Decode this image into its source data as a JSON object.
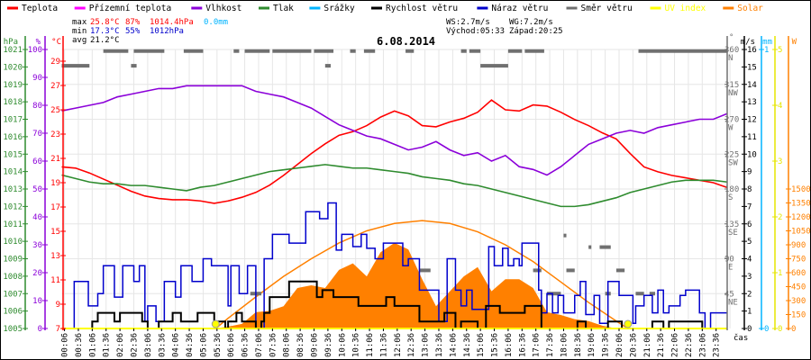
{
  "legend": [
    {
      "label": "Teplota",
      "color": "#ff0000"
    },
    {
      "label": "Přízemní teplota",
      "color": "#ff00ff"
    },
    {
      "label": "Vlhkost",
      "color": "#8b00d9"
    },
    {
      "label": "Tlak",
      "color": "#2e8b2e"
    },
    {
      "label": "Srážky",
      "color": "#00b4ff"
    },
    {
      "label": "Rychlost větru",
      "color": "#000000"
    },
    {
      "label": "Náraz větru",
      "color": "#0000cc"
    },
    {
      "label": "Směr větru",
      "color": "#707070"
    },
    {
      "label": "UV index",
      "color": "#ffff00"
    },
    {
      "label": "Solar",
      "color": "#ff8000"
    }
  ],
  "stats": {
    "max_label": "max",
    "max_temp": "25.8°C",
    "max_hum": "87%",
    "max_press": "1014.4hPa",
    "rain": "0.0mm",
    "min_label": "min",
    "min_temp": "17.3°C",
    "min_hum": "55%",
    "min_press": "1012hPa",
    "avg_label": "avg",
    "avg_temp": "21.2°C",
    "ws": "WS:2.7m/s",
    "wg": "WG:7.2m/s",
    "sunrise": "Východ:05:33",
    "sunset": "Západ:20:25"
  },
  "colors": {
    "max": "#ff0000",
    "min": "#0000cc",
    "rain": "#00b4ff",
    "grid": "#e6e6e6"
  },
  "chart_data": {
    "type": "line",
    "title": "6.08.2014",
    "xlabel": "čas",
    "x_range_hours": [
      0,
      24
    ],
    "x_ticks": [
      "00:06",
      "00:36",
      "01:06",
      "01:36",
      "02:06",
      "02:36",
      "03:06",
      "03:36",
      "04:06",
      "04:36",
      "05:06",
      "05:36",
      "06:06",
      "06:36",
      "07:06",
      "07:36",
      "08:06",
      "08:36",
      "09:06",
      "09:36",
      "10:06",
      "10:36",
      "11:06",
      "11:36",
      "12:06",
      "12:36",
      "13:06",
      "13:36",
      "14:06",
      "14:36",
      "15:06",
      "15:36",
      "16:06",
      "16:36",
      "17:06",
      "17:36",
      "18:06",
      "18:36",
      "19:06",
      "19:36",
      "20:06",
      "20:36",
      "21:06",
      "21:36",
      "22:06",
      "22:36",
      "23:06",
      "23:36"
    ],
    "axes": {
      "pressure": {
        "label": "hPa",
        "range": [
          1005,
          1021
        ],
        "ticks": [
          1005,
          1006,
          1007,
          1008,
          1009,
          1010,
          1011,
          1012,
          1013,
          1014,
          1015,
          1016,
          1017,
          1018,
          1019,
          1020,
          1021
        ]
      },
      "humidity": {
        "label": "%",
        "range": [
          0,
          100
        ],
        "ticks": [
          0,
          10,
          20,
          30,
          40,
          50,
          60,
          70,
          80,
          90,
          100
        ]
      },
      "temperature": {
        "label": "°C",
        "range": [
          7,
          29
        ],
        "ticks": [
          7,
          9,
          11,
          13,
          15,
          17,
          19,
          21,
          23,
          25,
          27,
          29
        ]
      },
      "direction": {
        "label": "°",
        "range": [
          0,
          360
        ],
        "ticks": [
          {
            "v": 45,
            "l": "NE"
          },
          {
            "v": 90,
            "l": "E"
          },
          {
            "v": 135,
            "l": "SE"
          },
          {
            "v": 180,
            "l": "S"
          },
          {
            "v": 225,
            "l": "SW"
          },
          {
            "v": 270,
            "l": "W"
          },
          {
            "v": 315,
            "l": "NW"
          },
          {
            "v": 360,
            "l": "N"
          }
        ]
      },
      "wind": {
        "label": "m/s",
        "range": [
          0,
          16
        ],
        "ticks": [
          0,
          1,
          2,
          3,
          4,
          5,
          6,
          7,
          8,
          9,
          10,
          11,
          12,
          13,
          14,
          15,
          16
        ]
      },
      "rain": {
        "label": "mm",
        "range": [
          0,
          1
        ],
        "ticks": [
          0,
          1
        ]
      },
      "uv": {
        "label": "",
        "range": [
          0,
          5
        ],
        "ticks": [
          0,
          1,
          2,
          3,
          4,
          5
        ]
      },
      "solar": {
        "label": "W",
        "range": [
          0,
          3000
        ],
        "ticks": [
          0,
          150,
          300,
          450,
          600,
          750,
          900,
          1050,
          1200,
          1350,
          1500
        ]
      }
    },
    "series_step_hours": 0.5,
    "series": [
      {
        "name": "Teplota",
        "axis": "temperature",
        "values": [
          20.3,
          20.2,
          19.8,
          19.3,
          18.8,
          18.3,
          17.9,
          17.7,
          17.6,
          17.6,
          17.5,
          17.3,
          17.5,
          17.8,
          18.2,
          18.8,
          19.6,
          20.5,
          21.4,
          22.2,
          22.9,
          23.2,
          23.7,
          24.4,
          24.9,
          24.5,
          23.7,
          23.6,
          24.0,
          24.3,
          24.8,
          25.8,
          25.0,
          24.9,
          25.4,
          25.3,
          24.8,
          24.2,
          23.7,
          23.1,
          22.6,
          21.4,
          20.3,
          19.9,
          19.6,
          19.4,
          19.2,
          19.0,
          18.6
        ]
      },
      {
        "name": "Vlhkost",
        "axis": "humidity",
        "values": [
          78,
          79,
          80,
          81,
          83,
          84,
          85,
          86,
          86,
          87,
          87,
          87,
          87,
          87,
          85,
          84,
          83,
          81,
          79,
          76,
          73,
          71,
          69,
          68,
          66,
          64,
          65,
          67,
          64,
          62,
          63,
          60,
          62,
          58,
          57,
          55,
          58,
          62,
          66,
          68,
          70,
          71,
          70,
          72,
          73,
          74,
          75,
          75,
          77
        ]
      },
      {
        "name": "Tlak",
        "axis": "pressure",
        "values": [
          1013.8,
          1013.6,
          1013.4,
          1013.3,
          1013.3,
          1013.2,
          1013.2,
          1013.1,
          1013.0,
          1012.9,
          1013.1,
          1013.2,
          1013.4,
          1013.6,
          1013.8,
          1014.0,
          1014.1,
          1014.2,
          1014.3,
          1014.4,
          1014.3,
          1014.2,
          1014.2,
          1014.1,
          1014.0,
          1013.9,
          1013.7,
          1013.6,
          1013.5,
          1013.3,
          1013.2,
          1013.0,
          1012.8,
          1012.6,
          1012.4,
          1012.2,
          1012.0,
          1012.0,
          1012.1,
          1012.3,
          1012.5,
          1012.8,
          1013.0,
          1013.2,
          1013.4,
          1013.5,
          1013.5,
          1013.5,
          1013.4
        ]
      }
    ],
    "wind_speed": {
      "name": "Rychlost větru",
      "axis": "wind",
      "points": [
        [
          0,
          0
        ],
        [
          1.1,
          0.4
        ],
        [
          1.3,
          0.9
        ],
        [
          1.9,
          0.4
        ],
        [
          2.1,
          0.9
        ],
        [
          2.9,
          0.4
        ],
        [
          3.1,
          0
        ],
        [
          3.5,
          0.4
        ],
        [
          4.0,
          0.9
        ],
        [
          4.3,
          0.4
        ],
        [
          4.9,
          0.9
        ],
        [
          5.5,
          0.4
        ],
        [
          5.9,
          0
        ],
        [
          6.0,
          0.4
        ],
        [
          6.3,
          0.9
        ],
        [
          6.5,
          0.4
        ],
        [
          7.0,
          0
        ],
        [
          7.2,
          0.4
        ],
        [
          7.3,
          0.9
        ],
        [
          7.5,
          1.8
        ],
        [
          8.2,
          2.7
        ],
        [
          9.2,
          1.8
        ],
        [
          9.4,
          2.2
        ],
        [
          9.8,
          1.8
        ],
        [
          10.7,
          1.3
        ],
        [
          11.7,
          1.8
        ],
        [
          12.0,
          1.3
        ],
        [
          12.9,
          0.4
        ],
        [
          13.8,
          0.9
        ],
        [
          14.2,
          0
        ],
        [
          14.4,
          0.4
        ],
        [
          15.0,
          0
        ],
        [
          15.3,
          1.3
        ],
        [
          15.8,
          0.9
        ],
        [
          16.7,
          1.3
        ],
        [
          17.3,
          0
        ],
        [
          18.6,
          0.4
        ],
        [
          18.9,
          0
        ],
        [
          19.7,
          0.4
        ],
        [
          20.2,
          0
        ],
        [
          21.3,
          0.4
        ],
        [
          21.7,
          0
        ],
        [
          21.9,
          0.4
        ],
        [
          23.1,
          0
        ],
        [
          24,
          0
        ]
      ]
    },
    "wind_gust": {
      "name": "Náraz větru",
      "axis": "wind",
      "points": [
        [
          0,
          0
        ],
        [
          0.45,
          2.7
        ],
        [
          0.96,
          1.3
        ],
        [
          1.3,
          2.0
        ],
        [
          1.5,
          3.6
        ],
        [
          1.9,
          1.8
        ],
        [
          2.2,
          3.6
        ],
        [
          2.6,
          2.7
        ],
        [
          2.8,
          3.6
        ],
        [
          3.0,
          0.4
        ],
        [
          3.1,
          1.3
        ],
        [
          3.4,
          0.4
        ],
        [
          3.7,
          2.7
        ],
        [
          4.1,
          1.8
        ],
        [
          4.3,
          3.6
        ],
        [
          4.7,
          2.7
        ],
        [
          5.1,
          4.0
        ],
        [
          5.4,
          3.6
        ],
        [
          6.0,
          1.3
        ],
        [
          6.1,
          3.6
        ],
        [
          6.4,
          2.0
        ],
        [
          6.7,
          3.6
        ],
        [
          7.0,
          0
        ],
        [
          7.3,
          4.0
        ],
        [
          7.6,
          5.4
        ],
        [
          8.2,
          4.9
        ],
        [
          8.8,
          6.7
        ],
        [
          9.3,
          6.3
        ],
        [
          9.6,
          7.2
        ],
        [
          9.9,
          4.5
        ],
        [
          10.1,
          5.4
        ],
        [
          10.5,
          4.7
        ],
        [
          10.8,
          5.4
        ],
        [
          11.0,
          4.6
        ],
        [
          11.3,
          4.0
        ],
        [
          11.6,
          4.9
        ],
        [
          12.3,
          3.6
        ],
        [
          12.5,
          4.0
        ],
        [
          12.9,
          2.2
        ],
        [
          13.6,
          0.4
        ],
        [
          13.9,
          4.0
        ],
        [
          14.2,
          2.2
        ],
        [
          14.4,
          1.3
        ],
        [
          14.6,
          2.2
        ],
        [
          14.8,
          1.1
        ],
        [
          15.4,
          4.7
        ],
        [
          15.6,
          3.6
        ],
        [
          15.9,
          4.6
        ],
        [
          16.1,
          3.6
        ],
        [
          16.3,
          4.0
        ],
        [
          16.5,
          3.6
        ],
        [
          16.6,
          4.9
        ],
        [
          17.2,
          2.2
        ],
        [
          17.3,
          0.9
        ],
        [
          17.5,
          2.0
        ],
        [
          17.7,
          0.9
        ],
        [
          17.9,
          1.9
        ],
        [
          18.1,
          0.9
        ],
        [
          18.5,
          1.9
        ],
        [
          18.7,
          2.7
        ],
        [
          18.9,
          0.8
        ],
        [
          19.2,
          1.9
        ],
        [
          19.4,
          0.3
        ],
        [
          19.7,
          2.7
        ],
        [
          20.1,
          1.9
        ],
        [
          20.6,
          0.3
        ],
        [
          20.7,
          1.3
        ],
        [
          21.0,
          1.9
        ],
        [
          21.3,
          0.9
        ],
        [
          21.5,
          2.2
        ],
        [
          21.7,
          0.9
        ],
        [
          21.9,
          1.3
        ],
        [
          22.3,
          1.9
        ],
        [
          22.5,
          2.2
        ],
        [
          23.0,
          0.9
        ],
        [
          23.2,
          0
        ],
        [
          23.4,
          0.9
        ],
        [
          24,
          0.9
        ]
      ]
    },
    "wind_direction": {
      "name": "Směr větru",
      "axis": "direction",
      "segments": [
        [
          0.0,
          1.0,
          339
        ],
        [
          1.5,
          2.4,
          358
        ],
        [
          2.6,
          3.7,
          358
        ],
        [
          2.5,
          2.7,
          339
        ],
        [
          4.4,
          5.1,
          358
        ],
        [
          6.2,
          6.4,
          358
        ],
        [
          6.6,
          7.5,
          358
        ],
        [
          7.6,
          9.0,
          358
        ],
        [
          9.1,
          9.8,
          358
        ],
        [
          9.5,
          9.7,
          339
        ],
        [
          10.4,
          10.6,
          358
        ],
        [
          10.9,
          11.3,
          358
        ],
        [
          12.4,
          12.7,
          358
        ],
        [
          14.4,
          14.6,
          358
        ],
        [
          14.7,
          15.1,
          358
        ],
        [
          15.1,
          16.1,
          339
        ],
        [
          16.1,
          16.6,
          358
        ],
        [
          16.7,
          17.4,
          358
        ],
        [
          20.8,
          24.0,
          358
        ],
        [
          6.8,
          7.2,
          45
        ],
        [
          12.9,
          13.3,
          75
        ],
        [
          17.0,
          17.3,
          75
        ],
        [
          18.2,
          18.5,
          75
        ],
        [
          19.4,
          19.8,
          105
        ],
        [
          19.0,
          19.1,
          105
        ],
        [
          18.1,
          18.2,
          120
        ],
        [
          20.0,
          20.3,
          75
        ],
        [
          17.5,
          18.0,
          45
        ],
        [
          19.6,
          19.8,
          45
        ],
        [
          20.7,
          21.0,
          45
        ],
        [
          21.2,
          21.4,
          45
        ]
      ]
    },
    "uv_index": {
      "name": "UV index",
      "axis": "uv",
      "values_all_day": 0,
      "markers": [
        [
          "05:33",
          5.55
        ],
        [
          "20:25",
          20.42
        ]
      ]
    },
    "solar": {
      "name": "Solar",
      "axis": "solar",
      "measured_start_hour": 5.5,
      "measured": [
        0,
        20,
        50,
        175,
        190,
        240,
        435,
        465,
        435,
        630,
        700,
        560,
        820,
        920,
        850,
        530,
        240,
        400,
        560,
        660,
        400,
        530,
        530,
        435,
        175,
        145,
        100,
        80,
        30,
        0
      ],
      "theoretical_hours": [
        5.55,
        6,
        7,
        8,
        9,
        10,
        11,
        12,
        13,
        14,
        15,
        16,
        17,
        18,
        19,
        20,
        20.42
      ],
      "theoretical": [
        0,
        110,
        340,
        560,
        750,
        920,
        1050,
        1130,
        1160,
        1130,
        1040,
        900,
        720,
        500,
        280,
        80,
        0
      ]
    }
  }
}
